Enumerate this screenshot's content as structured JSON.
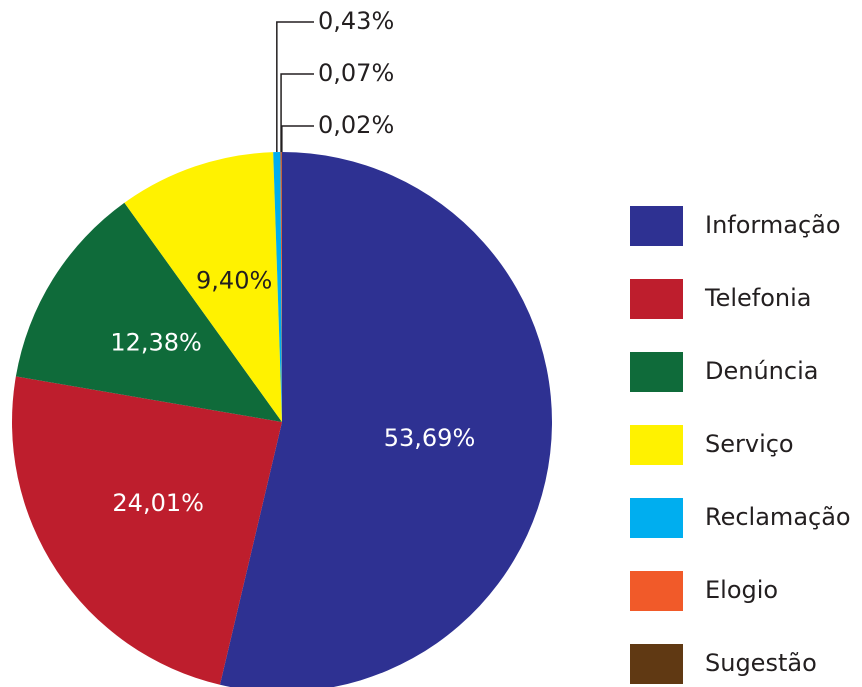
{
  "chart_data": {
    "type": "pie",
    "categories": [
      "Informação",
      "Telefonia",
      "Denúncia",
      "Serviço",
      "Reclamação",
      "Elogio",
      "Sugestão"
    ],
    "values": [
      53.69,
      24.01,
      12.38,
      9.4,
      0.43,
      0.07,
      0.02
    ],
    "value_labels": [
      "53,69%",
      "24,01%",
      "12,38%",
      "9,40%",
      "0,43%",
      "0,07%",
      "0,02%"
    ],
    "colors": [
      "#2e3192",
      "#be1e2d",
      "#0f6b3a",
      "#fff200",
      "#00aeef",
      "#f15a29",
      "#603913"
    ],
    "legend": "right"
  }
}
